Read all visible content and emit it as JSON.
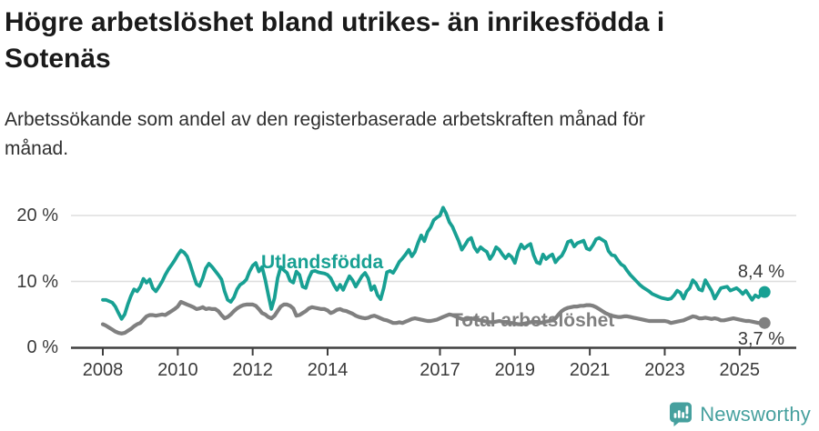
{
  "header": {
    "title_lines": [
      "Högre arbetslöshet bland utrikes- än inrikesfödda i",
      "Sotenäs"
    ],
    "subtitle_lines": [
      "Arbetssökande som andel av den registerbaserade arbetskraften månad för",
      "månad."
    ]
  },
  "branding": {
    "logo_text": "Newsworthy",
    "logo_color": "#46a09e"
  },
  "chart_data": {
    "type": "line",
    "unit": "percent",
    "frequency": "monthly",
    "start": "2008-01",
    "end": "2025-09",
    "ylim": [
      0,
      22
    ],
    "grid": "horizontal",
    "legend_position": "inline-labels",
    "y_tick_labels": [
      "20 %",
      "10 %",
      "0 %"
    ],
    "y_tick_values": [
      20,
      10,
      0
    ],
    "x_tick_labels": [
      "2008",
      "2010",
      "2012",
      "2014",
      "2017",
      "2019",
      "2021",
      "2023",
      "2025"
    ],
    "x_tick_years": [
      2008,
      2010,
      2012,
      2014,
      2017,
      2019,
      2021,
      2023,
      2025
    ],
    "colors": {
      "grid": "#dedede",
      "axis": "#3f3f3f",
      "tick_text": "#3a3a3a"
    },
    "series": [
      {
        "name": "Utlandsfödda",
        "color": "#18a093",
        "end_label": "8,4 %",
        "end_value": 8.4,
        "values": [
          7.2,
          7.2,
          7.0,
          6.8,
          6.2,
          5.2,
          4.3,
          5.0,
          6.5,
          7.8,
          8.8,
          8.5,
          9.2,
          10.4,
          9.8,
          10.3,
          9.0,
          8.5,
          9.2,
          10.0,
          11.0,
          11.8,
          12.5,
          13.2,
          14.0,
          14.7,
          14.4,
          13.8,
          12.5,
          11.0,
          9.6,
          9.3,
          10.5,
          12.0,
          12.7,
          12.2,
          11.6,
          11.0,
          10.3,
          8.5,
          7.2,
          6.9,
          7.6,
          8.8,
          9.5,
          9.8,
          10.3,
          11.5,
          12.4,
          12.8,
          11.5,
          12.2,
          10.3,
          8.0,
          5.8,
          7.5,
          10.5,
          12.2,
          11.7,
          11.3,
          10.1,
          9.8,
          11.5,
          11.0,
          9.2,
          9.0,
          10.5,
          11.5,
          11.6,
          11.4,
          11.3,
          11.2,
          11.0,
          10.5,
          9.5,
          8.7,
          9.5,
          8.7,
          9.8,
          10.8,
          10.2,
          9.2,
          10.0,
          10.8,
          11.3,
          10.5,
          8.7,
          9.3,
          7.9,
          7.3,
          9.0,
          11.4,
          11.6,
          11.3,
          12.1,
          13.0,
          13.5,
          14.1,
          14.8,
          13.8,
          14.5,
          15.9,
          17.0,
          16.1,
          17.5,
          18.2,
          19.3,
          19.7,
          20.0,
          21.2,
          20.3,
          19.0,
          18.3,
          17.2,
          16.1,
          14.8,
          15.5,
          16.3,
          16.6,
          15.2,
          14.5,
          15.2,
          14.8,
          14.5,
          13.4,
          14.1,
          15.2,
          14.8,
          14.1,
          13.5,
          14.1,
          13.7,
          12.8,
          14.5,
          15.6,
          15.0,
          15.4,
          15.7,
          14.0,
          12.9,
          12.7,
          14.1,
          13.4,
          13.8,
          14.1,
          12.9,
          13.5,
          13.9,
          14.8,
          16.0,
          16.2,
          15.3,
          15.8,
          16.0,
          16.2,
          15.0,
          14.8,
          15.5,
          16.4,
          16.6,
          16.3,
          16.0,
          14.6,
          14.0,
          13.9,
          13.2,
          12.6,
          12.3,
          11.6,
          11.0,
          10.5,
          10.0,
          9.5,
          9.1,
          8.8,
          8.5,
          8.1,
          7.9,
          7.7,
          7.5,
          7.4,
          7.3,
          7.4,
          7.9,
          8.6,
          8.3,
          7.4,
          8.5,
          9.0,
          10.2,
          9.7,
          8.8,
          8.6,
          10.2,
          9.4,
          8.6,
          7.4,
          8.2,
          9.0,
          9.1,
          9.2,
          8.6,
          8.8,
          9.0,
          8.6,
          8.1,
          8.6,
          7.9,
          7.2,
          7.9,
          7.6,
          8.1,
          8.4
        ]
      },
      {
        "name": "Total arbetslöshet",
        "color": "#808080",
        "end_label": "3,7 %",
        "end_value": 3.7,
        "values": [
          3.5,
          3.3,
          3.0,
          2.7,
          2.4,
          2.2,
          2.1,
          2.2,
          2.5,
          2.8,
          3.2,
          3.5,
          3.7,
          4.2,
          4.7,
          4.9,
          4.9,
          4.8,
          4.9,
          5.0,
          4.9,
          5.2,
          5.5,
          5.8,
          6.2,
          6.9,
          6.7,
          6.5,
          6.3,
          6.1,
          5.8,
          5.9,
          6.1,
          5.8,
          5.9,
          5.8,
          5.8,
          5.5,
          4.9,
          4.4,
          4.6,
          5.0,
          5.5,
          5.9,
          6.2,
          6.4,
          6.5,
          6.5,
          6.5,
          6.3,
          5.8,
          5.2,
          5.0,
          4.6,
          4.4,
          4.8,
          5.5,
          6.2,
          6.5,
          6.5,
          6.3,
          5.9,
          4.8,
          4.9,
          5.2,
          5.5,
          5.9,
          6.1,
          6.0,
          5.9,
          5.8,
          5.8,
          5.6,
          5.2,
          5.4,
          5.7,
          5.8,
          5.6,
          5.5,
          5.3,
          5.1,
          4.8,
          4.6,
          4.5,
          4.4,
          4.5,
          4.7,
          4.8,
          4.6,
          4.4,
          4.2,
          4.1,
          3.9,
          3.7,
          3.7,
          3.8,
          3.7,
          3.9,
          4.1,
          4.3,
          4.4,
          4.3,
          4.2,
          4.1,
          4.0,
          4.0,
          4.1,
          4.2,
          4.4,
          4.6,
          4.8,
          5.0,
          4.9,
          4.7,
          4.5,
          4.3,
          4.2,
          4.3,
          4.4,
          4.3,
          4.2,
          4.1,
          4.0,
          3.9,
          3.8,
          3.8,
          3.9,
          4.0,
          3.9,
          3.8,
          3.7,
          3.7,
          3.6,
          3.5,
          3.5,
          3.6,
          3.7,
          3.8,
          3.9,
          3.8,
          3.7,
          3.8,
          3.9,
          4.0,
          4.1,
          4.4,
          5.0,
          5.5,
          5.8,
          6.0,
          6.1,
          6.2,
          6.2,
          6.3,
          6.3,
          6.4,
          6.4,
          6.3,
          6.1,
          5.8,
          5.5,
          5.2,
          5.0,
          4.8,
          4.7,
          4.6,
          4.6,
          4.7,
          4.7,
          4.6,
          4.5,
          4.4,
          4.3,
          4.2,
          4.1,
          4.0,
          4.0,
          4.0,
          4.0,
          4.0,
          4.0,
          3.9,
          3.7,
          3.8,
          3.9,
          4.0,
          4.1,
          4.3,
          4.5,
          4.7,
          4.6,
          4.4,
          4.4,
          4.5,
          4.4,
          4.3,
          4.4,
          4.3,
          4.1,
          4.1,
          4.2,
          4.3,
          4.4,
          4.3,
          4.2,
          4.1,
          4.0,
          4.0,
          3.9,
          3.8,
          3.7,
          3.7,
          3.7
        ]
      }
    ]
  }
}
